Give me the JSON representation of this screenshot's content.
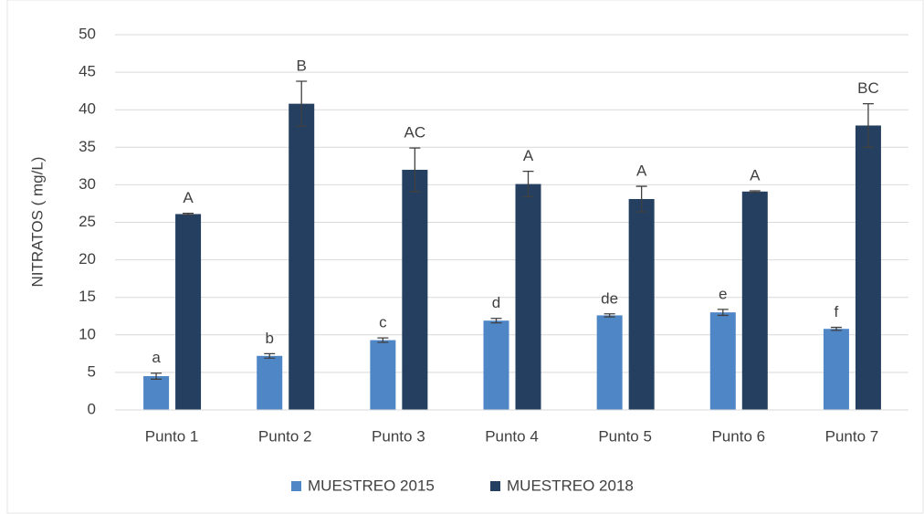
{
  "chart_data": {
    "type": "bar",
    "ylabel": "NITRATOS ( mg/L)",
    "categories": [
      "Punto 1",
      "Punto 2",
      "Punto 3",
      "Punto 4",
      "Punto 5",
      "Punto 6",
      "Punto 7"
    ],
    "series": [
      {
        "name": "MUESTREO 2015",
        "color": "#4f86c6",
        "values": [
          4.5,
          7.2,
          9.3,
          11.9,
          12.6,
          13.0,
          10.8
        ],
        "errors": [
          0.4,
          0.3,
          0.3,
          0.3,
          0.2,
          0.4,
          0.2
        ],
        "annotations": [
          "a",
          "b",
          "c",
          "d",
          "de",
          "e",
          "f"
        ]
      },
      {
        "name": "MUESTREO 2018",
        "color": "#243f60",
        "values": [
          26.1,
          40.8,
          32.0,
          30.1,
          28.1,
          29.1,
          37.9
        ],
        "errors": [
          0.1,
          3.0,
          2.9,
          1.7,
          1.7,
          0.1,
          2.9
        ],
        "annotations": [
          "A",
          "B",
          "AC",
          "A",
          "A",
          "A",
          "BC"
        ]
      }
    ],
    "ylim": [
      0,
      50
    ],
    "yticks": [
      0,
      5,
      10,
      15,
      20,
      25,
      30,
      35,
      40,
      45,
      50
    ],
    "grid": true,
    "legend": "bottom"
  }
}
